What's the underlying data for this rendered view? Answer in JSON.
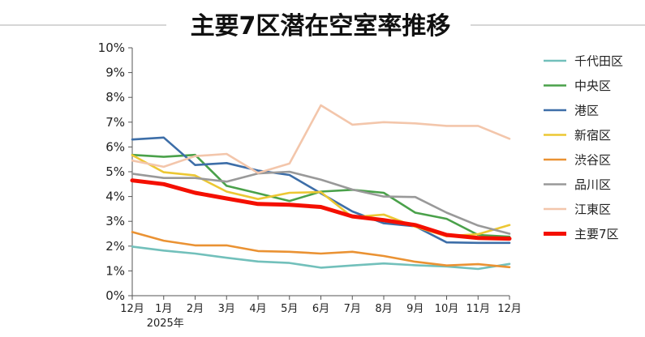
{
  "chart_data": {
    "type": "line",
    "title": "主要7区潜在空室率推移",
    "categories": [
      "12月",
      "1月",
      "2月",
      "3月",
      "4月",
      "5月",
      "6月",
      "7月",
      "8月",
      "9月",
      "10月",
      "11月",
      "12月"
    ],
    "year_label": "2025年",
    "y_ticks": [
      "0%",
      "1%",
      "2%",
      "3%",
      "4%",
      "5%",
      "6%",
      "7%",
      "8%",
      "9%",
      "10%"
    ],
    "ylim": [
      0,
      10
    ],
    "y_unit": "%",
    "grid": false,
    "legend_position": "right",
    "series": [
      {
        "name": "千代田区",
        "color": "#72c0bb",
        "values": [
          1.98,
          1.82,
          1.7,
          1.53,
          1.38,
          1.32,
          1.13,
          1.22,
          1.3,
          1.23,
          1.18,
          1.08,
          1.28
        ]
      },
      {
        "name": "中央区",
        "color": "#4aa14a",
        "values": [
          5.68,
          5.6,
          5.68,
          4.43,
          4.13,
          3.82,
          4.2,
          4.27,
          4.15,
          3.35,
          3.1,
          2.45,
          2.38
        ]
      },
      {
        "name": "港区",
        "color": "#3d6ea8",
        "values": [
          6.3,
          6.38,
          5.27,
          5.35,
          5.05,
          4.87,
          4.13,
          3.4,
          2.92,
          2.8,
          2.15,
          2.13,
          2.13
        ]
      },
      {
        "name": "新宿区",
        "color": "#ecc733",
        "values": [
          5.67,
          4.98,
          4.85,
          4.2,
          3.9,
          4.15,
          4.18,
          3.17,
          3.27,
          2.78,
          2.4,
          2.48,
          2.85
        ]
      },
      {
        "name": "渋谷区",
        "color": "#ea9233",
        "values": [
          2.57,
          2.22,
          2.03,
          2.03,
          1.8,
          1.77,
          1.7,
          1.77,
          1.6,
          1.37,
          1.22,
          1.27,
          1.15
        ]
      },
      {
        "name": "品川区",
        "color": "#999999",
        "values": [
          4.92,
          4.75,
          4.75,
          4.6,
          4.93,
          5.0,
          4.68,
          4.28,
          4.0,
          3.98,
          3.35,
          2.83,
          2.5
        ]
      },
      {
        "name": "江東区",
        "color": "#f3c6ab",
        "values": [
          5.45,
          5.2,
          5.63,
          5.72,
          4.95,
          5.33,
          7.68,
          6.9,
          7.0,
          6.95,
          6.85,
          6.85,
          6.33
        ]
      },
      {
        "name": "主要7区",
        "color": "#f40f00",
        "values": [
          4.65,
          4.5,
          4.15,
          3.92,
          3.7,
          3.67,
          3.58,
          3.2,
          3.05,
          2.85,
          2.45,
          2.33,
          2.3
        ]
      }
    ]
  }
}
